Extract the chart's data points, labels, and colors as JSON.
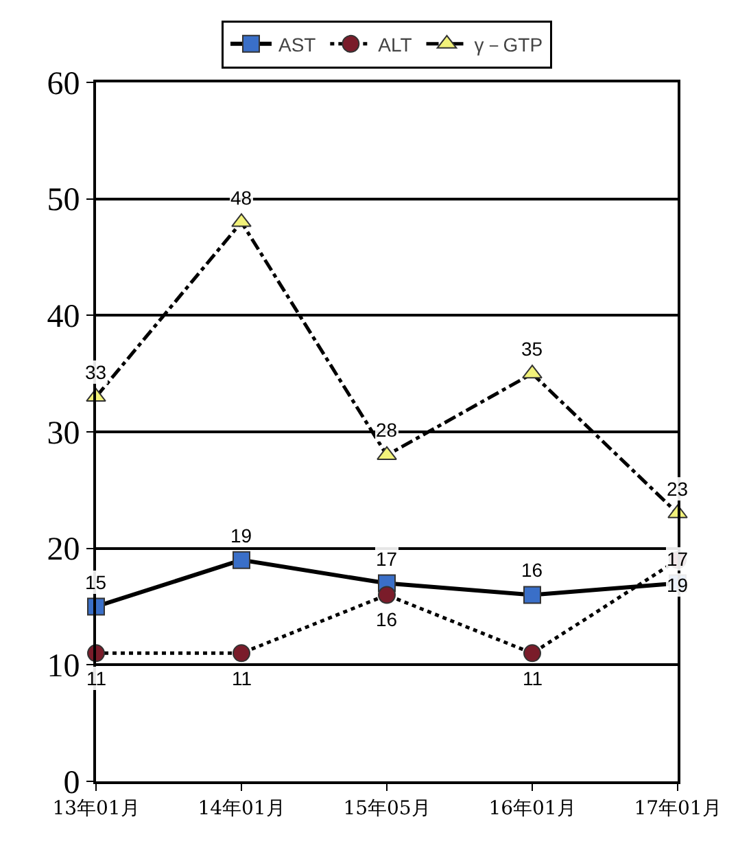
{
  "chart_data": {
    "type": "line",
    "categories": [
      "13年01月",
      "14年01月",
      "15年05月",
      "16年01月",
      "17年01月"
    ],
    "series": [
      {
        "name": "AST",
        "color": "#3a6fc8",
        "values": [
          15,
          19,
          17,
          16,
          17
        ],
        "marker": "square",
        "line_style": "solid"
      },
      {
        "name": "ALT",
        "color": "#7a1c2a",
        "values": [
          11,
          11,
          16,
          11,
          19
        ],
        "marker": "circle",
        "line_style": "dotted"
      },
      {
        "name": "γ－GTP",
        "color": "#f2f27a",
        "values": [
          33,
          48,
          28,
          35,
          23
        ],
        "marker": "triangle",
        "line_style": "dashdot"
      }
    ],
    "ylim": [
      0,
      60
    ],
    "yticks": [
      0,
      10,
      20,
      30,
      40,
      50,
      60
    ],
    "grid": "y",
    "legend": "top",
    "data_labels": true
  }
}
